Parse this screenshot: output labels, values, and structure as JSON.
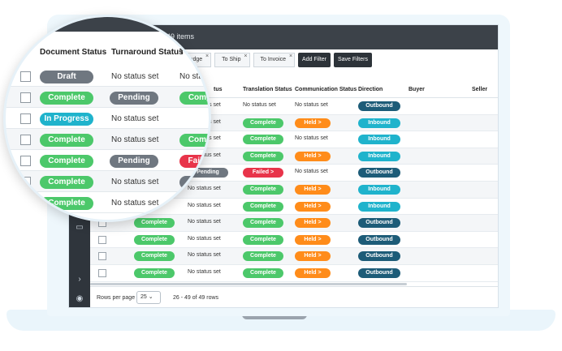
{
  "topbar": {
    "count": "49 items",
    "mag_count": "s 49 items"
  },
  "filters": [
    {
      "label": "ledge"
    },
    {
      "label": "To Ship"
    },
    {
      "label": "To Invoice"
    }
  ],
  "buttons": {
    "add_filter": "Add Filter",
    "save_filters": "Save Filters",
    "close": "×"
  },
  "columns": {
    "document_status": "Document Status",
    "turnaround_status": "Turnaround Status",
    "trunc": "T",
    "status_partial": "tus",
    "translation_status": "Translation Status",
    "communication_status": "Communication Status",
    "direction": "Direction",
    "buyer": "Buyer",
    "seller": "Seller"
  },
  "rows": [
    {
      "doc": "",
      "turn": "No status set",
      "trans": "No status set",
      "comm": "No status set",
      "dir": "Outbound"
    },
    {
      "doc": "",
      "turn": "No status set",
      "trans": "Complete",
      "comm": "Held >",
      "dir": "Inbound"
    },
    {
      "doc": "",
      "turn": "No status set",
      "trans": "Complete",
      "comm": "No status set",
      "dir": "Inbound"
    },
    {
      "doc": "",
      "turn": "No status set",
      "trans": "Complete",
      "comm": "Held >",
      "dir": "Inbound"
    },
    {
      "doc": "",
      "turn": "Pending",
      "trans": "Failed >",
      "comm": "No status set",
      "dir": "Outbound"
    },
    {
      "doc": "",
      "turn": "No status set",
      "trans": "Complete",
      "comm": "Held >",
      "dir": "Inbound"
    },
    {
      "doc": "",
      "turn": "No status set",
      "trans": "Complete",
      "comm": "Held >",
      "dir": "Inbound"
    },
    {
      "doc": "Complete",
      "turn": "No status set",
      "trans": "Complete",
      "comm": "Held >",
      "dir": "Outbound"
    },
    {
      "doc": "Complete",
      "turn": "No status set",
      "trans": "Complete",
      "comm": "Held >",
      "dir": "Outbound"
    },
    {
      "doc": "Complete",
      "turn": "No status set",
      "trans": "Complete",
      "comm": "Held >",
      "dir": "Outbound"
    },
    {
      "doc": "Complete",
      "turn": "No status set",
      "trans": "Complete",
      "comm": "Held >",
      "dir": "Outbound"
    }
  ],
  "magnifier": [
    {
      "doc": "Draft",
      "turn": "No status set",
      "t": "No sta"
    },
    {
      "doc": "Complete",
      "turn": "Pending",
      "t": "Comp"
    },
    {
      "doc": "In Progress",
      "turn": "No status set",
      "t": ""
    },
    {
      "doc": "Complete",
      "turn": "No status set",
      "t": "Comp"
    },
    {
      "doc": "Complete",
      "turn": "Pending",
      "t": "Failed"
    },
    {
      "doc": "Complete",
      "turn": "No status set",
      "t": "ng"
    },
    {
      "doc": "Complete",
      "turn": "No status set",
      "t": ""
    }
  ],
  "footer": {
    "rows_per_page_label": "Rows per page",
    "rows_per_page_value": "25 ⌄",
    "range": "26 - 49 of 49 rows"
  },
  "colors": {
    "complete": "#4cc86a",
    "failed": "#e8344a",
    "held": "#ff8c1a",
    "inbound": "#1fb3cc",
    "outbound": "#1d5c78",
    "draft": "#6f7780",
    "in_progress": "#1fb3cc"
  }
}
